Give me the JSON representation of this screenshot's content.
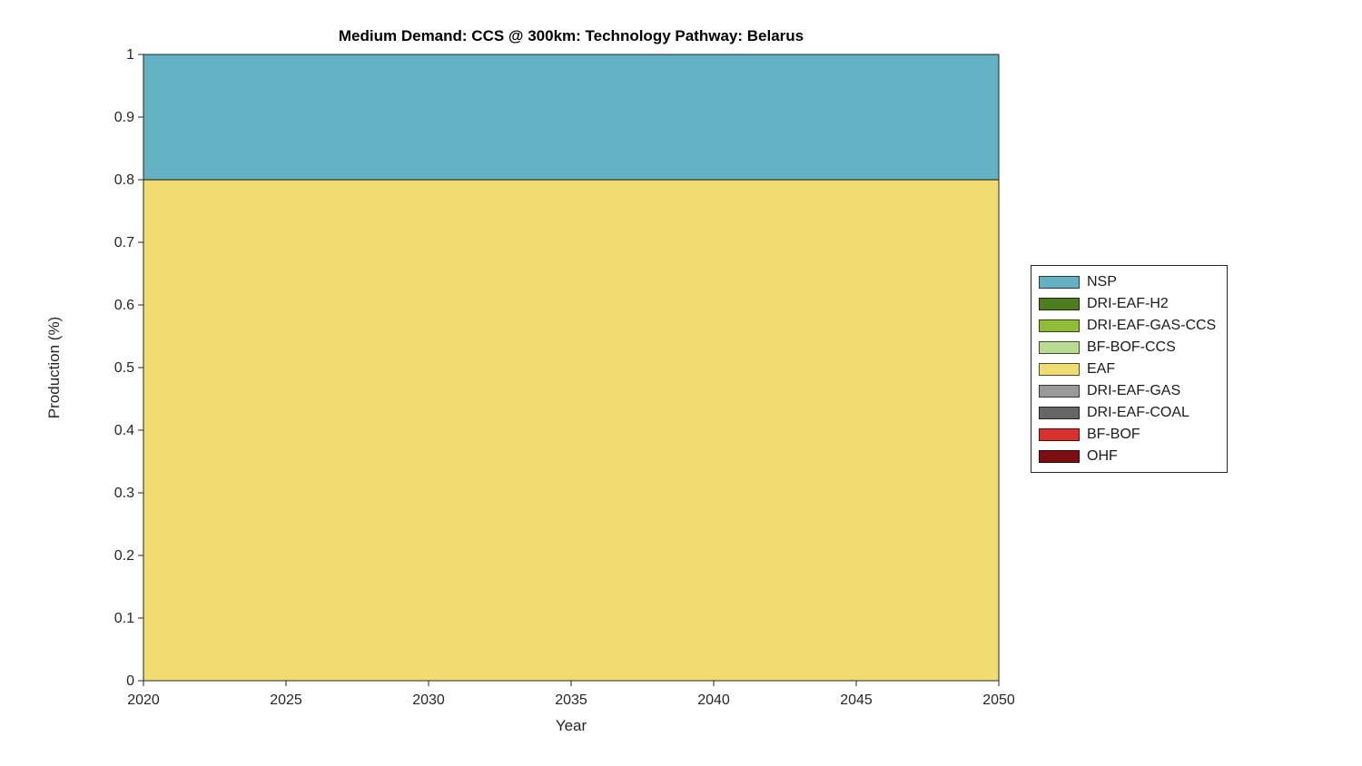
{
  "chart_data": {
    "type": "area",
    "stacked": true,
    "title": "Medium Demand: CCS @ 300km: Technology Pathway: Belarus",
    "xlabel": "Year",
    "ylabel": "Production (%)",
    "xlim": [
      2020,
      2050
    ],
    "ylim": [
      0,
      1
    ],
    "xticks": [
      2020,
      2025,
      2030,
      2035,
      2040,
      2045,
      2050
    ],
    "yticks": [
      0,
      0.1,
      0.2,
      0.3,
      0.4,
      0.5,
      0.6,
      0.7,
      0.8,
      0.9,
      1
    ],
    "grid": false,
    "legend_position": "right-outside",
    "x": [
      2020,
      2025,
      2030,
      2035,
      2040,
      2045,
      2050
    ],
    "series": [
      {
        "name": "NSP",
        "color": "#63b1c2",
        "values": [
          0.2,
          0.2,
          0.2,
          0.2,
          0.2,
          0.2,
          0.2
        ]
      },
      {
        "name": "DRI-EAF-H2",
        "color": "#4d7d1e",
        "values": [
          0,
          0,
          0,
          0,
          0,
          0,
          0
        ]
      },
      {
        "name": "DRI-EAF-GAS-CCS",
        "color": "#8fbe36",
        "values": [
          0,
          0,
          0,
          0,
          0,
          0,
          0
        ]
      },
      {
        "name": "BF-BOF-CCS",
        "color": "#b8dc92",
        "values": [
          0,
          0,
          0,
          0,
          0,
          0,
          0
        ]
      },
      {
        "name": "EAF",
        "color": "#f0dc70",
        "values": [
          0.8,
          0.8,
          0.8,
          0.8,
          0.8,
          0.8,
          0.8
        ]
      },
      {
        "name": "DRI-EAF-GAS",
        "color": "#999999",
        "values": [
          0,
          0,
          0,
          0,
          0,
          0,
          0
        ]
      },
      {
        "name": "DRI-EAF-COAL",
        "color": "#666666",
        "values": [
          0,
          0,
          0,
          0,
          0,
          0,
          0
        ]
      },
      {
        "name": "BF-BOF",
        "color": "#d8312d",
        "values": [
          0,
          0,
          0,
          0,
          0,
          0,
          0
        ]
      },
      {
        "name": "OHF",
        "color": "#7d0e12",
        "values": [
          0,
          0,
          0,
          0,
          0,
          0,
          0
        ]
      }
    ],
    "axis_color": "#262626"
  }
}
